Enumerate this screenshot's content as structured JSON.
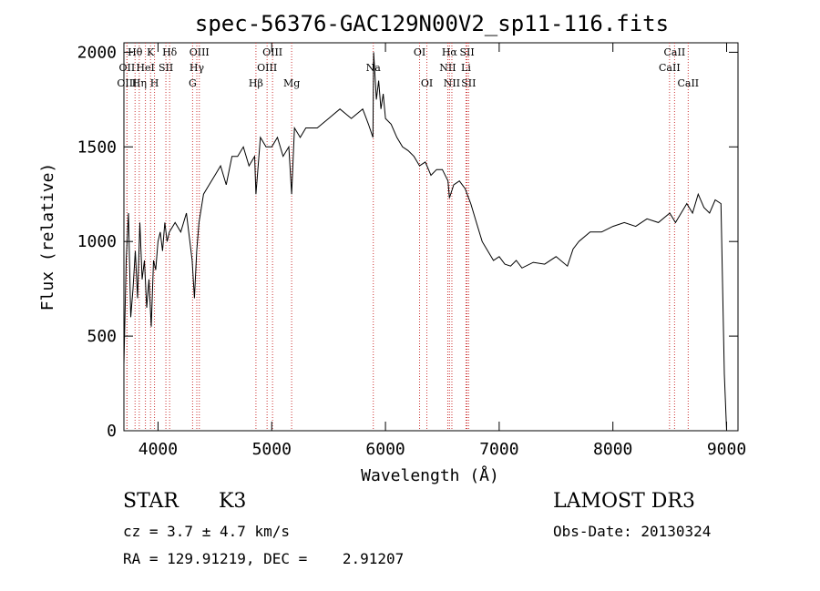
{
  "chart_data": {
    "type": "line",
    "title": "spec-56376-GAC129N00V2_sp11-116.fits",
    "xlabel": "Wavelength (Å)",
    "ylabel": "Flux (relative)",
    "xlim": [
      3700,
      9100
    ],
    "ylim": [
      0,
      2050
    ],
    "xticks": [
      4000,
      5000,
      6000,
      7000,
      8000,
      9000
    ],
    "yticks": [
      0,
      500,
      1000,
      1500,
      2000
    ],
    "grid": false,
    "series": [
      {
        "name": "spectrum",
        "x": [
          3700,
          3720,
          3740,
          3760,
          3780,
          3800,
          3820,
          3840,
          3860,
          3880,
          3900,
          3920,
          3940,
          3960,
          3980,
          4000,
          4020,
          4040,
          4060,
          4080,
          4100,
          4150,
          4200,
          4250,
          4300,
          4320,
          4340,
          4360,
          4400,
          4450,
          4500,
          4550,
          4600,
          4650,
          4700,
          4750,
          4800,
          4850,
          4861,
          4900,
          4950,
          5000,
          5050,
          5100,
          5150,
          5175,
          5200,
          5250,
          5300,
          5400,
          5500,
          5600,
          5700,
          5800,
          5850,
          5890,
          5896,
          5920,
          5940,
          5960,
          5980,
          6000,
          6050,
          6100,
          6150,
          6200,
          6250,
          6300,
          6350,
          6400,
          6450,
          6500,
          6550,
          6563,
          6600,
          6650,
          6700,
          6750,
          6800,
          6850,
          6900,
          6950,
          7000,
          7050,
          7100,
          7150,
          7200,
          7300,
          7400,
          7500,
          7600,
          7650,
          7700,
          7800,
          7900,
          8000,
          8100,
          8200,
          8300,
          8400,
          8500,
          8550,
          8600,
          8650,
          8700,
          8750,
          8800,
          8850,
          8900,
          8950,
          8980,
          9000
        ],
        "values": [
          350,
          900,
          1150,
          600,
          750,
          950,
          700,
          1100,
          800,
          900,
          650,
          800,
          550,
          900,
          850,
          1000,
          1050,
          950,
          1100,
          1000,
          1050,
          1100,
          1050,
          1150,
          900,
          700,
          950,
          1100,
          1250,
          1300,
          1350,
          1400,
          1300,
          1450,
          1450,
          1500,
          1400,
          1450,
          1250,
          1550,
          1500,
          1500,
          1550,
          1450,
          1500,
          1250,
          1600,
          1550,
          1600,
          1600,
          1650,
          1700,
          1650,
          1700,
          1620,
          1550,
          2000,
          1750,
          1850,
          1700,
          1780,
          1650,
          1620,
          1550,
          1500,
          1480,
          1450,
          1400,
          1420,
          1350,
          1380,
          1380,
          1320,
          1230,
          1300,
          1320,
          1280,
          1200,
          1100,
          1000,
          950,
          900,
          920,
          880,
          870,
          900,
          860,
          890,
          880,
          920,
          870,
          960,
          1000,
          1050,
          1050,
          1080,
          1100,
          1080,
          1120,
          1100,
          1150,
          1100,
          1150,
          1200,
          1150,
          1250,
          1180,
          1150,
          1220,
          1200,
          300,
          0
        ]
      }
    ],
    "lines": [
      {
        "label": "Hθ",
        "x": 3798,
        "row": 0
      },
      {
        "label": "OII",
        "x": 3727,
        "row": 1
      },
      {
        "label": "OIII",
        "x": 3727,
        "row": 2
      },
      {
        "label": "Hη",
        "x": 3835,
        "row": 2
      },
      {
        "label": "HeI",
        "x": 3889,
        "row": 1
      },
      {
        "label": "K",
        "x": 3934,
        "row": 0
      },
      {
        "label": "H",
        "x": 3969,
        "row": 2
      },
      {
        "label": "SII",
        "x": 4069,
        "row": 1
      },
      {
        "label": "Hδ",
        "x": 4102,
        "row": 0
      },
      {
        "label": "OIII",
        "x": 4363,
        "row": 0
      },
      {
        "label": "Hγ",
        "x": 4341,
        "row": 1
      },
      {
        "label": "G",
        "x": 4304,
        "row": 2
      },
      {
        "label": "Hβ",
        "x": 4861,
        "row": 2
      },
      {
        "label": "OIII",
        "x": 5007,
        "row": 0
      },
      {
        "label": "OIII",
        "x": 4959,
        "row": 1
      },
      {
        "label": "Mg",
        "x": 5175,
        "row": 2
      },
      {
        "label": "Na",
        "x": 5893,
        "row": 1
      },
      {
        "label": "OI",
        "x": 6300,
        "row": 0
      },
      {
        "label": "OI",
        "x": 6364,
        "row": 2
      },
      {
        "label": "Hα",
        "x": 6563,
        "row": 0
      },
      {
        "label": "NII",
        "x": 6548,
        "row": 1
      },
      {
        "label": "NII",
        "x": 6584,
        "row": 2
      },
      {
        "label": "SII",
        "x": 6717,
        "row": 0
      },
      {
        "label": "Li",
        "x": 6708,
        "row": 1
      },
      {
        "label": "SII",
        "x": 6731,
        "row": 2
      },
      {
        "label": "CaII",
        "x": 8542,
        "row": 0
      },
      {
        "label": "CaII",
        "x": 8498,
        "row": 1
      },
      {
        "label": "CaII",
        "x": 8662,
        "row": 2
      }
    ]
  },
  "info": {
    "object_class": "STAR",
    "subclass": "K3",
    "survey": "LAMOST DR3",
    "cz_line": "cz = 3.7 ± 4.7 km/s",
    "obs_date_line": "Obs-Date: 20130324",
    "coords_line": "RA = 129.91219, DEC =    2.91207"
  },
  "colors": {
    "line_marker": "#cc3333",
    "spectrum": "#000000"
  }
}
